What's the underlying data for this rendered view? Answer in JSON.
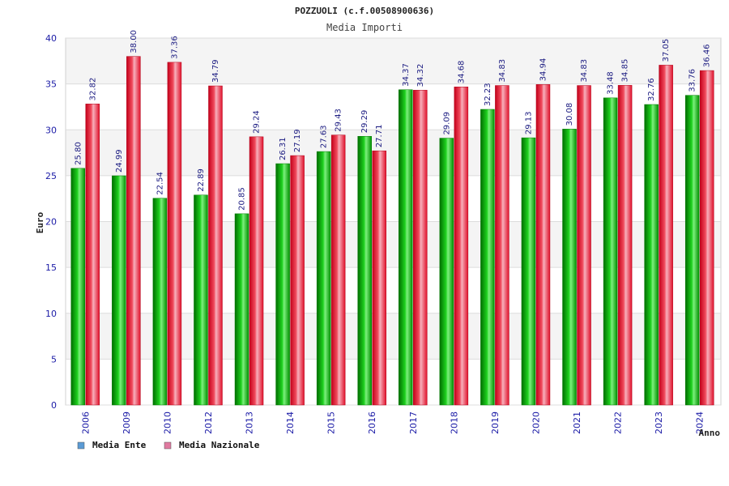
{
  "chart_data": {
    "type": "bar",
    "title": "POZZUOLI (c.f.00508900636)",
    "subtitle": "Media Importi",
    "xlabel": "Anno",
    "ylabel": "Euro",
    "ylim": [
      0,
      40
    ],
    "yticks": [
      0,
      5,
      10,
      15,
      20,
      25,
      30,
      35,
      40
    ],
    "grid": true,
    "legend_position": "bottom-left",
    "categories": [
      "2006",
      "2009",
      "2010",
      "2012",
      "2013",
      "2014",
      "2015",
      "2016",
      "2017",
      "2018",
      "2019",
      "2020",
      "2021",
      "2022",
      "2023",
      "2024"
    ],
    "series": [
      {
        "name": "Media Ente",
        "legend_color": "#5b9bd5",
        "bar_color": "#00b000",
        "values": [
          25.8,
          24.99,
          22.54,
          22.89,
          20.85,
          26.31,
          27.63,
          29.29,
          34.37,
          29.09,
          32.23,
          29.13,
          30.08,
          33.48,
          32.76,
          33.76
        ],
        "labels": [
          "25.80",
          "24.99",
          "22.54",
          "22.89",
          "20.85",
          "26.31",
          "27.63",
          "29.29",
          "34.37",
          "29.09",
          "32.23",
          "29.13",
          "30.08",
          "33.48",
          "32.76",
          "33.76"
        ]
      },
      {
        "name": "Media Nazionale",
        "legend_color": "#e07aa0",
        "bar_color": "#e0102a",
        "values": [
          32.82,
          38.0,
          37.36,
          34.79,
          29.24,
          27.19,
          29.43,
          27.71,
          34.32,
          34.68,
          34.83,
          34.94,
          34.83,
          34.85,
          37.05,
          36.46
        ],
        "labels": [
          "32.82",
          "38.00",
          "37.36",
          "34.79",
          "29.24",
          "27.19",
          "29.43",
          "27.71",
          "34.32",
          "34.68",
          "34.83",
          "34.94",
          "34.83",
          "34.85",
          "37.05",
          "36.46"
        ]
      }
    ]
  }
}
